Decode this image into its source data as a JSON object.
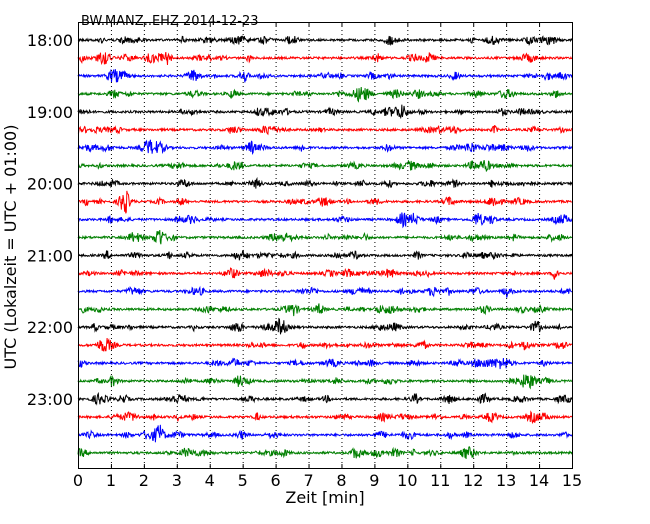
{
  "chart_data": {
    "type": "line",
    "title": "BW.MANZ..EHZ 2014-12-23",
    "xlabel": "Zeit  [min]",
    "ylabel": "UTC (Lokalzeit = UTC + 01:00)",
    "xlim": [
      0,
      15
    ],
    "x_ticks": [
      "0",
      "1",
      "2",
      "3",
      "4",
      "5",
      "6",
      "7",
      "8",
      "9",
      "10",
      "11",
      "12",
      "13",
      "14",
      "15"
    ],
    "y_ticks": [
      "18:00",
      "19:00",
      "20:00",
      "21:00",
      "22:00",
      "23:00"
    ],
    "traces_per_hour": 4,
    "trace_count": 24,
    "trace_colors": [
      "#000000",
      "#ff0000",
      "#0000ff",
      "#007f00"
    ],
    "grid": "vertical dotted lines at each minute"
  }
}
